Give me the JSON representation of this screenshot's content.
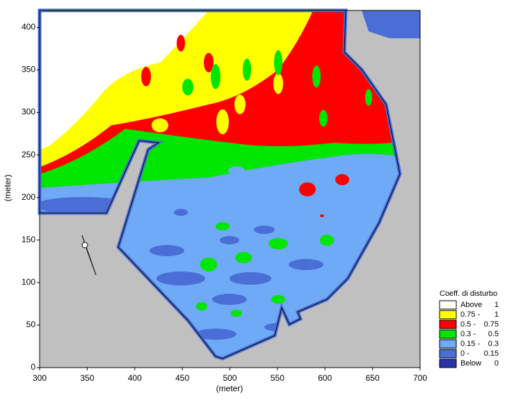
{
  "chart_data": {
    "type": "contour",
    "xlabel": "(meter)",
    "ylabel": "(meter)",
    "xlim": [
      300,
      700
    ],
    "ylim": [
      0,
      420
    ],
    "xticks": [
      300,
      350,
      400,
      450,
      500,
      550,
      600,
      650,
      700
    ],
    "yticks": [
      0,
      50,
      100,
      150,
      200,
      250,
      300,
      350,
      400
    ],
    "legend": {
      "title": "Coeff. di disturbo",
      "items": [
        {
          "lower": "Above",
          "upper": "1",
          "color": "#ffffff"
        },
        {
          "lower": "0.75 -",
          "upper": "1",
          "color": "#ffff00"
        },
        {
          "lower": "0.5 -",
          "upper": "0.75",
          "color": "#ff0000"
        },
        {
          "lower": "0.3 -",
          "upper": "0.5",
          "color": "#00e600"
        },
        {
          "lower": "0.15 -",
          "upper": "0.3",
          "color": "#6eaaf5"
        },
        {
          "lower": "0 -",
          "upper": "0.15",
          "color": "#4a6ed6"
        },
        {
          "lower": "Below",
          "upper": "0",
          "color": "#2834a8"
        }
      ]
    }
  }
}
